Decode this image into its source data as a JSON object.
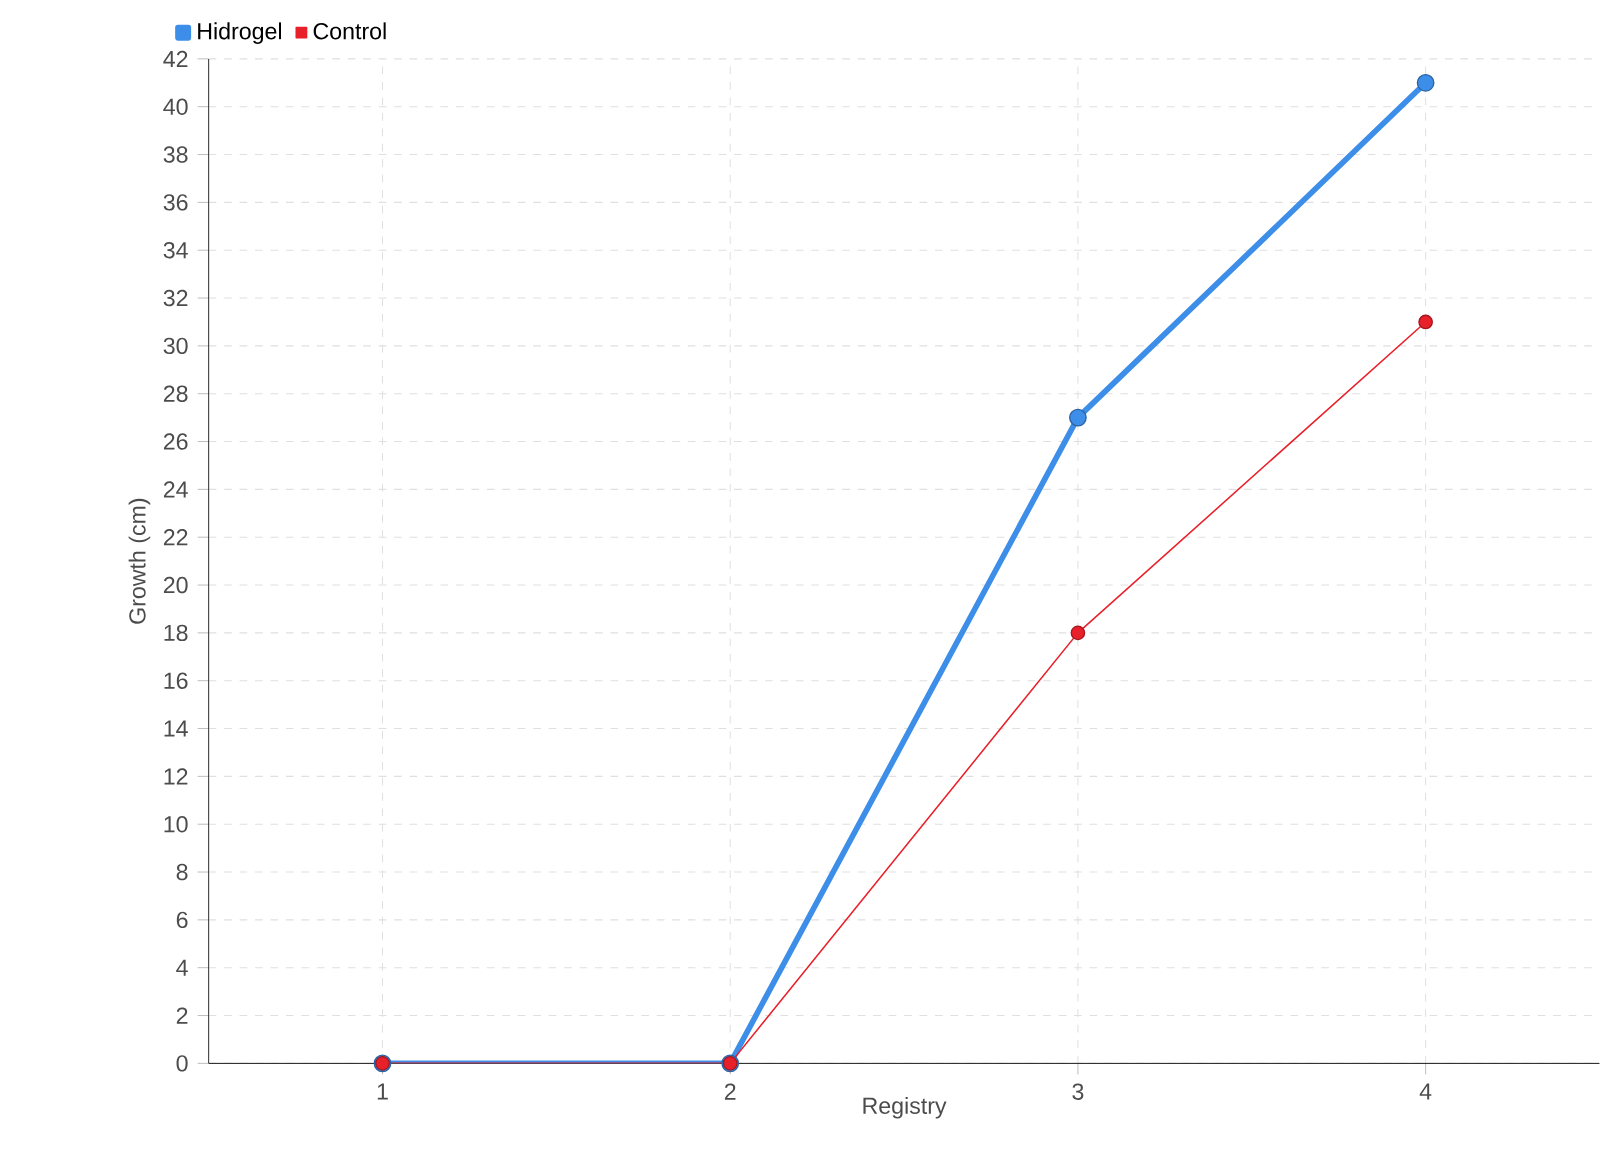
{
  "chart_data": {
    "type": "line",
    "xlabel": "Registry",
    "ylabel": "Growth (cm)",
    "categories": [
      "1",
      "2",
      "3",
      "4"
    ],
    "series": [
      {
        "name": "Hidrogel",
        "color": "#3d8ee8",
        "values": [
          0,
          0,
          27,
          41
        ]
      },
      {
        "name": "Control",
        "color": "#e8202a",
        "values": [
          0,
          0,
          18,
          31
        ]
      }
    ],
    "ylim": [
      0,
      42
    ],
    "yticks": [
      0,
      2,
      4,
      6,
      8,
      10,
      12,
      14,
      16,
      18,
      20,
      22,
      24,
      26,
      28,
      30,
      32,
      34,
      36,
      38,
      40,
      42
    ],
    "grid": true,
    "legend": "top left",
    "marker": "circle",
    "line_style": "solid"
  }
}
